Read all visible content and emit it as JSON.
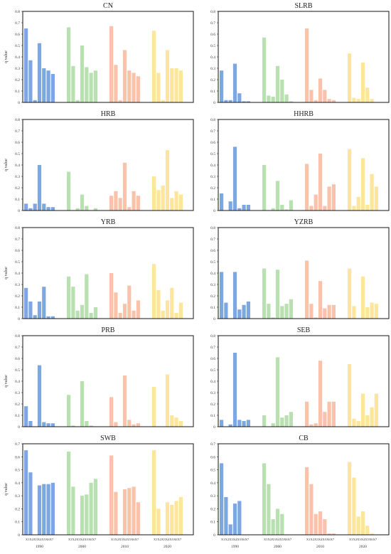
{
  "figure": {
    "ylabel": "q value",
    "years": [
      "1990",
      "2000",
      "2010",
      "2020"
    ],
    "variables": [
      "X1",
      "X2",
      "X3",
      "X4",
      "X5",
      "X6",
      "X7"
    ],
    "yticks": [
      "0",
      "0.1",
      "0.2",
      "0.3",
      "0.4",
      "0.5",
      "0.6",
      "0.7",
      "0.8"
    ],
    "year_colors": [
      "#7ea6e0",
      "#b9e0b0",
      "#f9c3ab",
      "#fde59b"
    ]
  },
  "chart_data": [
    {
      "type": "bar",
      "title": "CN",
      "ylabel": "q value",
      "ylim": [
        0,
        0.8
      ],
      "categories": [
        "X1",
        "X2",
        "X3",
        "X4",
        "X5",
        "X6",
        "X7"
      ],
      "series": [
        {
          "name": "1990",
          "values": [
            0.65,
            0.37,
            0.02,
            0.52,
            0.3,
            0.28,
            0.25
          ]
        },
        {
          "name": "2000",
          "values": [
            0.66,
            0.32,
            0.02,
            0.5,
            0.31,
            0.26,
            0.28
          ]
        },
        {
          "name": "2010",
          "values": [
            0.67,
            0.33,
            0.02,
            0.46,
            0.28,
            0.26,
            0.23
          ]
        },
        {
          "name": "2020",
          "values": [
            0.63,
            0.26,
            0.02,
            0.46,
            0.3,
            0.3,
            0.28
          ]
        }
      ]
    },
    {
      "type": "bar",
      "title": "SLRB",
      "ylabel": "",
      "ylim": [
        0,
        0.8
      ],
      "categories": [
        "X1",
        "X2",
        "X3",
        "X4",
        "X5",
        "X6",
        "X7"
      ],
      "series": [
        {
          "name": "1990",
          "values": [
            0.28,
            0.02,
            0.02,
            0.34,
            0.08,
            0.01,
            0.01
          ]
        },
        {
          "name": "2000",
          "values": [
            0.57,
            0.06,
            0.05,
            0.32,
            0.2,
            0.07,
            0.01
          ]
        },
        {
          "name": "2010",
          "values": [
            0.65,
            0.11,
            0.02,
            0.21,
            0.11,
            0.03,
            0.02
          ]
        },
        {
          "name": "2020",
          "values": [
            0.43,
            0.04,
            0.03,
            0.35,
            0.13,
            0.03,
            0.0
          ]
        }
      ]
    },
    {
      "type": "bar",
      "title": "HRB",
      "ylabel": "q value",
      "ylim": [
        0,
        0.8
      ],
      "categories": [
        "X1",
        "X2",
        "X3",
        "X4",
        "X5",
        "X6",
        "X7"
      ],
      "series": [
        {
          "name": "1990",
          "values": [
            0.06,
            0.02,
            0.06,
            0.4,
            0.06,
            0.03,
            0.03
          ]
        },
        {
          "name": "2000",
          "values": [
            0.34,
            0.0,
            0.02,
            0.14,
            0.04,
            0.0,
            0.02
          ]
        },
        {
          "name": "2010",
          "values": [
            0.13,
            0.17,
            0.11,
            0.42,
            0.03,
            0.17,
            0.13
          ]
        },
        {
          "name": "2020",
          "values": [
            0.3,
            0.18,
            0.22,
            0.53,
            0.11,
            0.17,
            0.14
          ]
        }
      ]
    },
    {
      "type": "bar",
      "title": "HHRB",
      "ylabel": "",
      "ylim": [
        0,
        0.8
      ],
      "categories": [
        "X1",
        "X2",
        "X3",
        "X4",
        "X5",
        "X6",
        "X7"
      ],
      "series": [
        {
          "name": "1990",
          "values": [
            0.15,
            0.0,
            0.08,
            0.56,
            0.02,
            0.05,
            0.05
          ]
        },
        {
          "name": "2000",
          "values": [
            0.4,
            0.0,
            0.02,
            0.26,
            0.05,
            0.01,
            0.09
          ]
        },
        {
          "name": "2010",
          "values": [
            0.41,
            0.04,
            0.14,
            0.5,
            0.04,
            0.21,
            0.23
          ]
        },
        {
          "name": "2020",
          "values": [
            0.54,
            0.04,
            0.12,
            0.46,
            0.05,
            0.32,
            0.21
          ]
        }
      ]
    },
    {
      "type": "bar",
      "title": "YRB",
      "ylabel": "q value",
      "ylim": [
        0,
        0.8
      ],
      "categories": [
        "X1",
        "X2",
        "X3",
        "X4",
        "X5",
        "X6",
        "X7"
      ],
      "series": [
        {
          "name": "1990",
          "values": [
            0.27,
            0.15,
            0.03,
            0.15,
            0.28,
            0.02,
            0.02
          ]
        },
        {
          "name": "2000",
          "values": [
            0.37,
            0.28,
            0.07,
            0.12,
            0.39,
            0.05,
            0.1
          ]
        },
        {
          "name": "2010",
          "values": [
            0.4,
            0.23,
            0.05,
            0.13,
            0.29,
            0.07,
            0.16
          ]
        },
        {
          "name": "2020",
          "values": [
            0.48,
            0.25,
            0.07,
            0.16,
            0.27,
            0.05,
            0.14
          ]
        }
      ]
    },
    {
      "type": "bar",
      "title": "YZRB",
      "ylabel": "",
      "ylim": [
        0,
        0.8
      ],
      "categories": [
        "X1",
        "X2",
        "X3",
        "X4",
        "X5",
        "X6",
        "X7"
      ],
      "series": [
        {
          "name": "1990",
          "values": [
            0.41,
            0.14,
            0.0,
            0.41,
            0.08,
            0.12,
            0.15
          ]
        },
        {
          "name": "2000",
          "values": [
            0.44,
            0.13,
            0.01,
            0.43,
            0.11,
            0.13,
            0.17
          ]
        },
        {
          "name": "2010",
          "values": [
            0.51,
            0.13,
            0.01,
            0.33,
            0.09,
            0.12,
            0.12
          ]
        },
        {
          "name": "2020",
          "values": [
            0.44,
            0.11,
            0.0,
            0.37,
            0.1,
            0.14,
            0.13
          ]
        }
      ]
    },
    {
      "type": "bar",
      "title": "PRB",
      "ylabel": "q value",
      "ylim": [
        0,
        0.8
      ],
      "categories": [
        "X1",
        "X2",
        "X3",
        "X4",
        "X5",
        "X6",
        "X7"
      ],
      "series": [
        {
          "name": "1990",
          "values": [
            0.18,
            0.05,
            0.0,
            0.54,
            0.04,
            0.03,
            0.03
          ]
        },
        {
          "name": "2000",
          "values": [
            0.28,
            0.01,
            0.0,
            0.4,
            0.05,
            0.01,
            0.0
          ]
        },
        {
          "name": "2010",
          "values": [
            0.26,
            0.04,
            0.0,
            0.45,
            0.06,
            0.02,
            0.03
          ]
        },
        {
          "name": "2020",
          "values": [
            0.35,
            0.0,
            0.0,
            0.46,
            0.1,
            0.08,
            0.05
          ]
        }
      ]
    },
    {
      "type": "bar",
      "title": "SEB",
      "ylabel": "",
      "ylim": [
        0,
        0.8
      ],
      "categories": [
        "X1",
        "X2",
        "X3",
        "X4",
        "X5",
        "X6",
        "X7"
      ],
      "series": [
        {
          "name": "1990",
          "values": [
            0.06,
            0.0,
            0.02,
            0.65,
            0.06,
            0.05,
            0.06
          ]
        },
        {
          "name": "2000",
          "values": [
            0.1,
            0.0,
            0.03,
            0.61,
            0.08,
            0.1,
            0.13
          ]
        },
        {
          "name": "2010",
          "values": [
            0.22,
            0.02,
            0.03,
            0.58,
            0.13,
            0.22,
            0.22
          ]
        },
        {
          "name": "2020",
          "values": [
            0.55,
            0.07,
            0.05,
            0.29,
            0.1,
            0.17,
            0.29
          ]
        }
      ]
    },
    {
      "type": "bar",
      "title": "SWB",
      "ylabel": "q value",
      "ylim": [
        0,
        0.7
      ],
      "categories": [
        "X1",
        "X2",
        "X3",
        "X4",
        "X5",
        "X6",
        "X7"
      ],
      "series": [
        {
          "name": "1990",
          "values": [
            0.65,
            0.48,
            0.0,
            0.38,
            0.39,
            0.39,
            0.4
          ]
        },
        {
          "name": "2000",
          "values": [
            0.64,
            0.37,
            0.0,
            0.3,
            0.31,
            0.4,
            0.43
          ]
        },
        {
          "name": "2010",
          "values": [
            0.61,
            0.33,
            0.0,
            0.35,
            0.36,
            0.37,
            0.25
          ]
        },
        {
          "name": "2020",
          "values": [
            0.65,
            0.2,
            0.0,
            0.25,
            0.23,
            0.26,
            0.29
          ]
        }
      ]
    },
    {
      "type": "bar",
      "title": "CB",
      "ylabel": "",
      "ylim": [
        0,
        0.7
      ],
      "categories": [
        "X1",
        "X2",
        "X3",
        "X4",
        "X5",
        "X6",
        "X7"
      ],
      "series": [
        {
          "name": "1990",
          "values": [
            0.55,
            0.29,
            0.08,
            0.24,
            0.26,
            0.0,
            0.0
          ]
        },
        {
          "name": "2000",
          "values": [
            0.55,
            0.39,
            0.12,
            0.2,
            0.16,
            0.0,
            0.0
          ]
        },
        {
          "name": "2010",
          "values": [
            0.52,
            0.39,
            0.16,
            0.18,
            0.12,
            0.01,
            0.01
          ]
        },
        {
          "name": "2020",
          "values": [
            0.56,
            0.44,
            0.14,
            0.18,
            0.07,
            0.01,
            0.0
          ]
        }
      ]
    }
  ]
}
